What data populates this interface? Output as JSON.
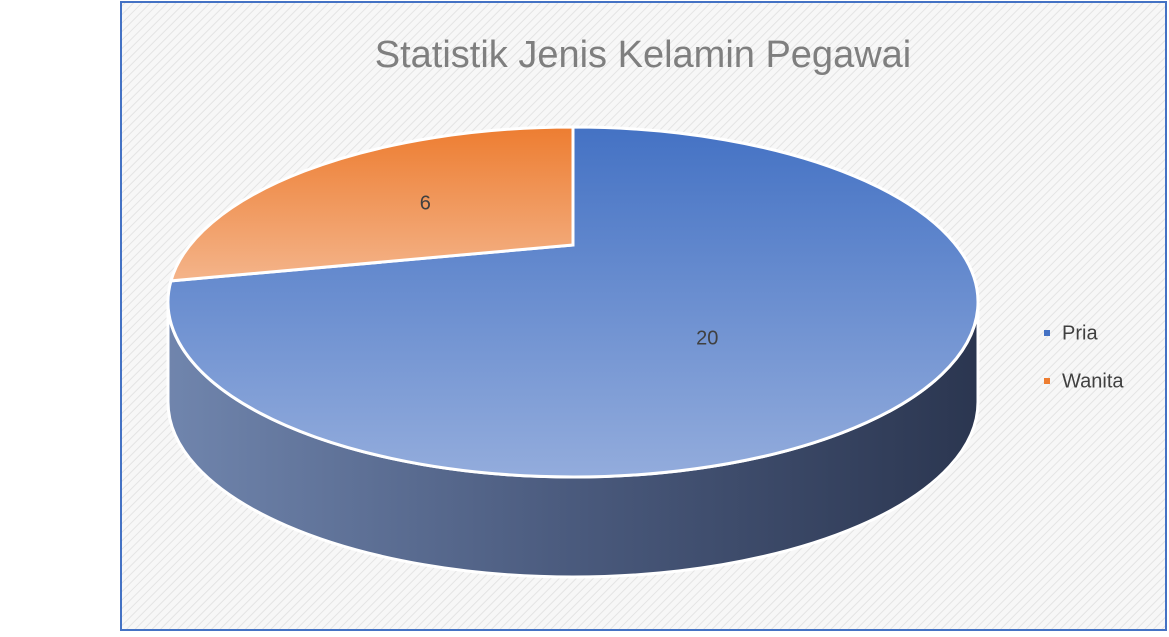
{
  "chart_data": {
    "type": "pie",
    "title": "Statistik Jenis Kelamin Pegawai",
    "categories": [
      "Pria",
      "Wanita"
    ],
    "values": [
      20,
      6
    ],
    "colors": [
      "#4472c4",
      "#ed7d31"
    ],
    "legend": "right",
    "three_d": true
  }
}
